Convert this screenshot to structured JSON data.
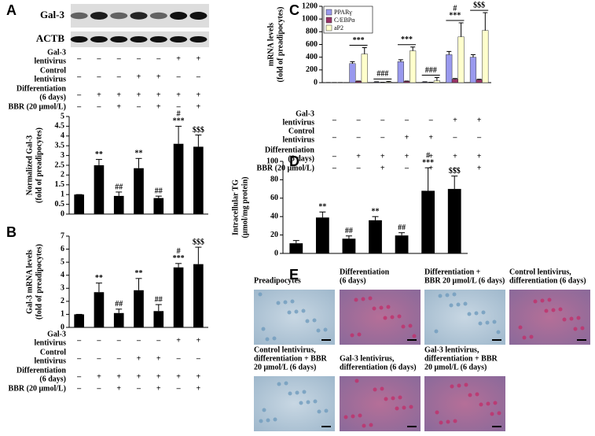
{
  "panels": [
    "A",
    "B",
    "C",
    "D",
    "E"
  ],
  "blot": {
    "labels": [
      "Gal-3",
      "ACTB"
    ]
  },
  "conditions": {
    "rows": [
      {
        "label": [
          "Gal-3",
          "lentivirus"
        ],
        "signs": [
          "–",
          "–",
          "–",
          "–",
          "–",
          "+",
          "+"
        ]
      },
      {
        "label": [
          "Control",
          "lentivirus"
        ],
        "signs": [
          "–",
          "–",
          "–",
          "+",
          "+",
          "–",
          "–"
        ]
      },
      {
        "label": [
          "Differentiation",
          "(6 days)"
        ],
        "signs": [
          "–",
          "+",
          "+",
          "+",
          "+",
          "+",
          "+"
        ]
      },
      {
        "label": [
          "BBR (20 μmol/L)"
        ],
        "signs": [
          "–",
          "–",
          "+",
          "–",
          "+",
          "–",
          "+"
        ]
      }
    ]
  },
  "chart_data": [
    {
      "type": "bar",
      "ylabel": [
        "Normalized Gal-3",
        "(fold of preadipocytes)"
      ],
      "categories": [
        null,
        null,
        null,
        null,
        null,
        null,
        null
      ],
      "values": [
        1,
        2.5,
        0.93,
        2.35,
        0.82,
        3.6,
        3.45
      ],
      "errors": [
        0,
        0.3,
        0.2,
        0.5,
        0.1,
        0.9,
        0.6
      ],
      "annotations": [
        null,
        "**",
        "##",
        "**",
        "##",
        [
          "#",
          "***"
        ],
        "$$$"
      ],
      "color": "#000000",
      "ylim": [
        0,
        5
      ],
      "yticks": [
        0,
        0.5,
        1,
        1.5,
        2,
        2.5,
        3,
        3.5,
        4,
        4.5,
        5
      ]
    },
    {
      "type": "bar",
      "ylabel": [
        "Gal-3 mRNA levels",
        "(fold of preadipocytes)"
      ],
      "categories": [
        null,
        null,
        null,
        null,
        null,
        null,
        null
      ],
      "values": [
        1,
        2.7,
        1.1,
        2.85,
        1.25,
        4.6,
        4.85
      ],
      "errors": [
        0,
        0.7,
        0.3,
        0.9,
        0.5,
        0.3,
        1.3
      ],
      "annotations": [
        null,
        "**",
        "##",
        "**",
        "##",
        [
          "#",
          "***"
        ],
        "$$$"
      ],
      "color": "#000000",
      "ylim": [
        0,
        7
      ],
      "yticks": [
        0,
        1,
        2,
        3,
        4,
        5,
        6,
        7
      ]
    },
    {
      "type": "grouped_bar",
      "ylabel": [
        "mRNA levels",
        "(fold of preadipocytes)"
      ],
      "categories": [
        null,
        null,
        null,
        null,
        null,
        null,
        null
      ],
      "series": [
        {
          "name": "PPARγ",
          "color": "#9999ee",
          "values": [
            1,
            300,
            8,
            330,
            8,
            440,
            400
          ],
          "errors": [
            0,
            30,
            5,
            30,
            5,
            50,
            40
          ]
        },
        {
          "name": "C/EBPα",
          "color": "#993366",
          "values": [
            1,
            20,
            3,
            20,
            3,
            55,
            45
          ],
          "errors": [
            0,
            5,
            2,
            5,
            2,
            10,
            8
          ]
        },
        {
          "name": "aP2",
          "color": "#ffffcc",
          "values": [
            1,
            450,
            10,
            500,
            30,
            720,
            820
          ],
          "errors": [
            0,
            100,
            10,
            60,
            50,
            220,
            280
          ]
        }
      ],
      "annotations": [
        null,
        "***",
        "###",
        "***",
        "###",
        [
          "#",
          "***"
        ],
        "$$$"
      ],
      "legend": "top-left",
      "ylim": [
        0,
        1200
      ],
      "yticks": [
        0,
        200,
        400,
        600,
        800,
        1000,
        1200
      ]
    },
    {
      "type": "bar",
      "ylabel": [
        "Intracellular TG",
        "(μmol/mg protein)"
      ],
      "categories": [
        null,
        null,
        null,
        null,
        null,
        null,
        null
      ],
      "values": [
        11,
        39,
        16,
        36,
        19.5,
        68,
        70
      ],
      "errors": [
        3,
        6,
        3,
        4,
        3,
        25,
        14
      ],
      "annotations": [
        null,
        "**",
        "##",
        "**",
        "##",
        [
          "#",
          "***"
        ],
        "$$$"
      ],
      "color": "#000000",
      "ylim": [
        0,
        100
      ],
      "yticks": [
        0,
        20,
        40,
        60,
        80,
        100
      ]
    }
  ],
  "images": [
    {
      "caption": [
        "Preadipocytes"
      ]
    },
    {
      "caption": [
        "Differentiation",
        "(6 days)"
      ]
    },
    {
      "caption": [
        "Differentiation +",
        "BBR 20 μmol/L (6 days)"
      ]
    },
    {
      "caption": [
        "Control lentivirus,",
        "differentiation (6 days)"
      ]
    },
    {
      "caption": [
        "Control lentivirus,",
        "differentiation + BBR",
        "20 μmol/L (6 days)"
      ]
    },
    {
      "caption": [
        "Gal-3 lentivirus,",
        "differentiation (6 days)"
      ]
    },
    {
      "caption": [
        "Gal-3 lentivirus,",
        "differentiation + BBR",
        "20 μmol/L (6 days)"
      ]
    }
  ]
}
